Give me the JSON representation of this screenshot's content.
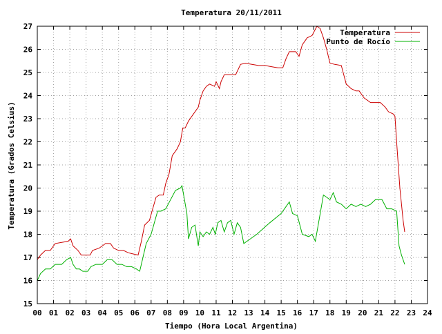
{
  "chart_data": {
    "type": "line",
    "title": "Temperatura 20/11/2011",
    "xlabel": "Tiempo (Hora Local Argentina)",
    "ylabel": "Temperatura (Grados Celsius)",
    "xlim": [
      0,
      24
    ],
    "ylim": [
      15,
      27
    ],
    "grid": true,
    "legend_position": "top-right",
    "x_ticks": [
      "00",
      "01",
      "02",
      "03",
      "04",
      "05",
      "06",
      "07",
      "08",
      "09",
      "10",
      "11",
      "12",
      "13",
      "14",
      "15",
      "16",
      "17",
      "18",
      "19",
      "20",
      "21",
      "22",
      "23",
      "24"
    ],
    "y_ticks": [
      "15",
      "16",
      "17",
      "18",
      "19",
      "20",
      "21",
      "22",
      "23",
      "24",
      "25",
      "26",
      "27"
    ],
    "series": [
      {
        "name": "Temperatura",
        "color": "#cc0000",
        "points": [
          [
            0.0,
            16.9
          ],
          [
            0.2,
            17.1
          ],
          [
            0.5,
            17.3
          ],
          [
            0.8,
            17.3
          ],
          [
            1.1,
            17.6
          ],
          [
            1.5,
            17.65
          ],
          [
            1.9,
            17.7
          ],
          [
            2.05,
            17.8
          ],
          [
            2.2,
            17.5
          ],
          [
            2.5,
            17.3
          ],
          [
            2.7,
            17.1
          ],
          [
            3.0,
            17.1
          ],
          [
            3.25,
            17.1
          ],
          [
            3.4,
            17.3
          ],
          [
            3.8,
            17.4
          ],
          [
            4.2,
            17.6
          ],
          [
            4.5,
            17.6
          ],
          [
            4.7,
            17.4
          ],
          [
            5.0,
            17.3
          ],
          [
            5.3,
            17.3
          ],
          [
            5.6,
            17.2
          ],
          [
            5.9,
            17.15
          ],
          [
            6.2,
            17.1
          ],
          [
            6.4,
            17.7
          ],
          [
            6.6,
            18.4
          ],
          [
            6.9,
            18.6
          ],
          [
            7.1,
            19.1
          ],
          [
            7.3,
            19.6
          ],
          [
            7.5,
            19.7
          ],
          [
            7.75,
            19.7
          ],
          [
            7.9,
            20.2
          ],
          [
            8.1,
            20.6
          ],
          [
            8.3,
            21.4
          ],
          [
            8.6,
            21.7
          ],
          [
            8.8,
            22.0
          ],
          [
            8.95,
            22.6
          ],
          [
            9.1,
            22.6
          ],
          [
            9.3,
            22.9
          ],
          [
            9.6,
            23.2
          ],
          [
            9.9,
            23.5
          ],
          [
            10.0,
            23.8
          ],
          [
            10.2,
            24.2
          ],
          [
            10.4,
            24.4
          ],
          [
            10.6,
            24.5
          ],
          [
            10.9,
            24.4
          ],
          [
            11.0,
            24.6
          ],
          [
            11.2,
            24.3
          ],
          [
            11.3,
            24.6
          ],
          [
            11.5,
            24.9
          ],
          [
            11.8,
            24.9
          ],
          [
            12.2,
            24.9
          ],
          [
            12.5,
            25.35
          ],
          [
            12.8,
            25.4
          ],
          [
            13.2,
            25.35
          ],
          [
            13.6,
            25.3
          ],
          [
            14.0,
            25.3
          ],
          [
            14.4,
            25.25
          ],
          [
            14.8,
            25.2
          ],
          [
            15.1,
            25.2
          ],
          [
            15.3,
            25.6
          ],
          [
            15.5,
            25.9
          ],
          [
            15.9,
            25.9
          ],
          [
            16.1,
            25.7
          ],
          [
            16.3,
            26.2
          ],
          [
            16.6,
            26.5
          ],
          [
            16.9,
            26.6
          ],
          [
            17.2,
            27.0
          ],
          [
            17.4,
            26.9
          ],
          [
            17.6,
            26.5
          ],
          [
            17.8,
            26.0
          ],
          [
            18.0,
            25.4
          ],
          [
            18.3,
            25.35
          ],
          [
            18.7,
            25.3
          ],
          [
            19.0,
            24.5
          ],
          [
            19.3,
            24.3
          ],
          [
            19.6,
            24.2
          ],
          [
            19.8,
            24.2
          ],
          [
            20.1,
            23.9
          ],
          [
            20.5,
            23.7
          ],
          [
            20.8,
            23.7
          ],
          [
            21.1,
            23.7
          ],
          [
            21.4,
            23.5
          ],
          [
            21.6,
            23.3
          ],
          [
            21.9,
            23.2
          ],
          [
            22.0,
            23.1
          ],
          [
            22.1,
            22.0
          ],
          [
            22.3,
            20.0
          ],
          [
            22.5,
            18.6
          ],
          [
            22.6,
            18.1
          ]
        ]
      },
      {
        "name": "Punto de Rocío",
        "color": "#00b000",
        "points": [
          [
            0.0,
            16.0
          ],
          [
            0.2,
            16.3
          ],
          [
            0.5,
            16.5
          ],
          [
            0.8,
            16.5
          ],
          [
            1.1,
            16.7
          ],
          [
            1.5,
            16.7
          ],
          [
            1.8,
            16.9
          ],
          [
            2.05,
            17.0
          ],
          [
            2.2,
            16.7
          ],
          [
            2.4,
            16.5
          ],
          [
            2.6,
            16.5
          ],
          [
            2.8,
            16.4
          ],
          [
            3.1,
            16.4
          ],
          [
            3.3,
            16.6
          ],
          [
            3.6,
            16.7
          ],
          [
            4.0,
            16.7
          ],
          [
            4.3,
            16.9
          ],
          [
            4.6,
            16.9
          ],
          [
            4.9,
            16.7
          ],
          [
            5.2,
            16.7
          ],
          [
            5.5,
            16.6
          ],
          [
            5.8,
            16.6
          ],
          [
            6.1,
            16.5
          ],
          [
            6.3,
            16.4
          ],
          [
            6.5,
            17.0
          ],
          [
            6.7,
            17.6
          ],
          [
            7.0,
            18.0
          ],
          [
            7.2,
            18.5
          ],
          [
            7.4,
            19.0
          ],
          [
            7.6,
            19.0
          ],
          [
            7.9,
            19.1
          ],
          [
            8.2,
            19.5
          ],
          [
            8.5,
            19.9
          ],
          [
            8.8,
            20.0
          ],
          [
            8.9,
            20.1
          ],
          [
            9.05,
            19.5
          ],
          [
            9.2,
            18.9
          ],
          [
            9.3,
            17.8
          ],
          [
            9.5,
            18.3
          ],
          [
            9.7,
            18.4
          ],
          [
            9.9,
            17.5
          ],
          [
            10.0,
            18.1
          ],
          [
            10.2,
            17.9
          ],
          [
            10.4,
            18.1
          ],
          [
            10.6,
            18.0
          ],
          [
            10.8,
            18.3
          ],
          [
            10.95,
            18.0
          ],
          [
            11.1,
            18.5
          ],
          [
            11.3,
            18.6
          ],
          [
            11.5,
            18.1
          ],
          [
            11.7,
            18.5
          ],
          [
            11.9,
            18.6
          ],
          [
            12.1,
            18.0
          ],
          [
            12.3,
            18.5
          ],
          [
            12.5,
            18.3
          ],
          [
            12.7,
            17.6
          ],
          [
            13.5,
            18.0
          ],
          [
            14.3,
            18.5
          ],
          [
            15.0,
            18.9
          ],
          [
            15.3,
            19.2
          ],
          [
            15.5,
            19.4
          ],
          [
            15.7,
            18.9
          ],
          [
            16.0,
            18.8
          ],
          [
            16.3,
            18.0
          ],
          [
            16.7,
            17.9
          ],
          [
            16.9,
            18.0
          ],
          [
            17.1,
            17.7
          ],
          [
            17.3,
            18.5
          ],
          [
            17.6,
            19.7
          ],
          [
            17.8,
            19.6
          ],
          [
            18.0,
            19.5
          ],
          [
            18.2,
            19.8
          ],
          [
            18.4,
            19.4
          ],
          [
            18.7,
            19.3
          ],
          [
            19.0,
            19.1
          ],
          [
            19.3,
            19.3
          ],
          [
            19.6,
            19.2
          ],
          [
            19.9,
            19.3
          ],
          [
            20.2,
            19.2
          ],
          [
            20.5,
            19.3
          ],
          [
            20.8,
            19.5
          ],
          [
            21.2,
            19.5
          ],
          [
            21.5,
            19.1
          ],
          [
            21.8,
            19.1
          ],
          [
            22.1,
            19.0
          ],
          [
            22.25,
            17.5
          ],
          [
            22.4,
            17.1
          ],
          [
            22.5,
            16.9
          ],
          [
            22.6,
            16.7
          ]
        ]
      }
    ]
  }
}
